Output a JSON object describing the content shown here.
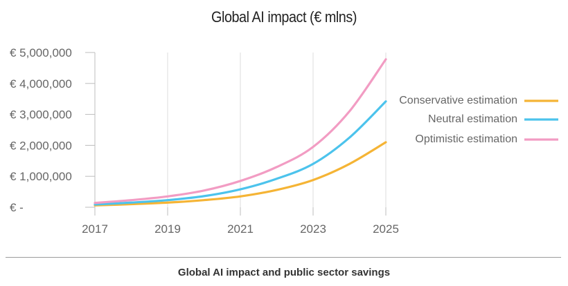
{
  "chart_data": {
    "type": "line",
    "title": "Global AI impact (€ mlns)",
    "xlabel": "",
    "ylabel": "",
    "x": [
      2017,
      2018,
      2019,
      2020,
      2021,
      2022,
      2023,
      2024,
      2025
    ],
    "xticks": [
      "2017",
      "2019",
      "2021",
      "2023",
      "2025"
    ],
    "yticks": [
      0,
      1000000,
      2000000,
      3000000,
      4000000,
      5000000
    ],
    "ytick_labels": [
      "€ -",
      "€ 1,000,000",
      "€ 2,000,000",
      "€ 3,000,000",
      "€ 4,000,000",
      "€ 5,000,000"
    ],
    "xlim": [
      2017,
      2025
    ],
    "ylim": [
      0,
      5000000
    ],
    "grid": "vertical",
    "legend_position": "right",
    "series": [
      {
        "name": "Conservative estimation",
        "color": "#f5b435",
        "values": [
          60000,
          100000,
          150000,
          230000,
          350000,
          560000,
          880000,
          1400000,
          2100000
        ]
      },
      {
        "name": "Neutral estimation",
        "color": "#4cc3ec",
        "values": [
          90000,
          150000,
          230000,
          360000,
          580000,
          920000,
          1400000,
          2250000,
          3420000
        ]
      },
      {
        "name": "Optimistic estimation",
        "color": "#f29cc3",
        "values": [
          140000,
          230000,
          350000,
          540000,
          850000,
          1300000,
          1950000,
          3100000,
          4780000
        ]
      }
    ]
  },
  "caption": "Global AI impact and public sector savings"
}
